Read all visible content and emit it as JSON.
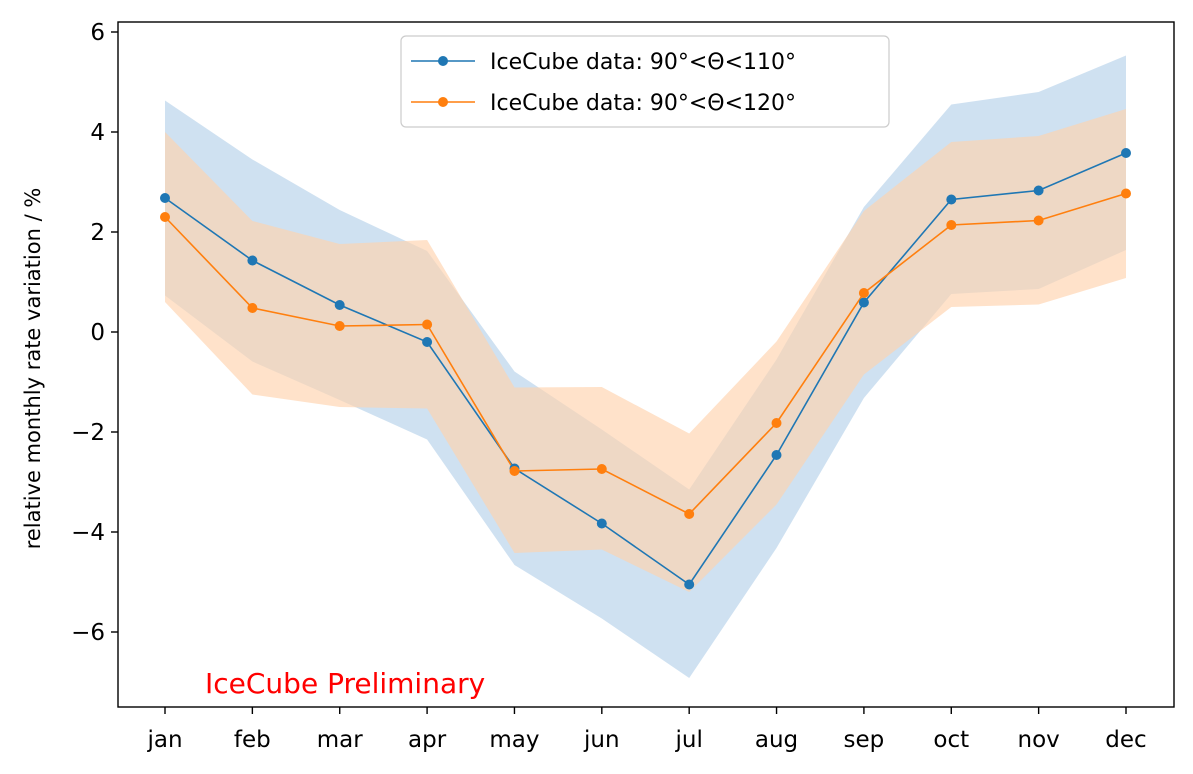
{
  "chart_data": {
    "type": "line",
    "title": "",
    "xlabel": "",
    "ylabel": "relative monthly rate variation / %",
    "categories": [
      "jan",
      "feb",
      "mar",
      "apr",
      "may",
      "jun",
      "jul",
      "aug",
      "sep",
      "oct",
      "nov",
      "dec"
    ],
    "ylim": [
      -7.5,
      6.2
    ],
    "yticks": [
      -6,
      -4,
      -2,
      0,
      2,
      4,
      6
    ],
    "ytick_labels": [
      "−6",
      "−4",
      "−2",
      "0",
      "2",
      "4",
      "6"
    ],
    "grid": false,
    "legend_position": "top-center",
    "series": [
      {
        "name": "IceCube data: 90°<Θ<110°",
        "color": "#1f77b4",
        "band_color": "#c7dcee",
        "values": [
          2.68,
          1.43,
          0.54,
          -0.2,
          -2.73,
          -3.83,
          -5.05,
          -2.46,
          0.59,
          2.65,
          2.83,
          3.58
        ],
        "band_upper": [
          4.63,
          3.45,
          2.44,
          1.62,
          -0.79,
          -1.95,
          -3.15,
          -0.55,
          2.5,
          4.55,
          4.8,
          5.53
        ],
        "band_lower": [
          0.73,
          -0.59,
          -1.36,
          -2.15,
          -4.66,
          -5.73,
          -6.92,
          -4.32,
          -1.32,
          0.76,
          0.86,
          1.64
        ]
      },
      {
        "name": "IceCube data: 90°<Θ<120°",
        "color": "#ff7f0e",
        "band_color": "#ffd2ae",
        "values": [
          2.3,
          0.48,
          0.12,
          0.15,
          -2.78,
          -2.74,
          -3.64,
          -1.82,
          0.78,
          2.14,
          2.23,
          2.77
        ],
        "band_upper": [
          4.0,
          2.22,
          1.76,
          1.84,
          -1.11,
          -1.1,
          -2.03,
          -0.19,
          2.42,
          3.8,
          3.92,
          4.46
        ],
        "band_lower": [
          0.6,
          -1.25,
          -1.5,
          -1.53,
          -4.42,
          -4.35,
          -5.2,
          -3.45,
          -0.85,
          0.5,
          0.55,
          1.08
        ]
      }
    ],
    "annotation": {
      "text": "IceCube Preliminary",
      "color": "#ff0000"
    }
  }
}
